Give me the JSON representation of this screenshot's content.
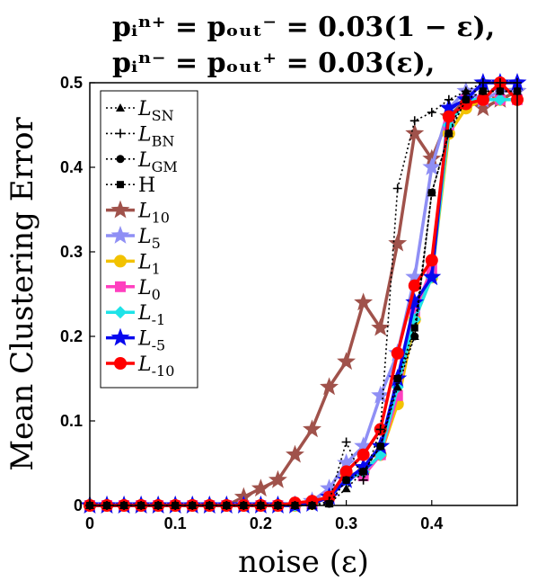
{
  "chart_data": {
    "type": "line",
    "title_lines": [
      "pᵢⁿ⁺ = pₒᵤₜ⁻ = 0.03(1 − ε),",
      "pᵢⁿ⁻ = pₒᵤₜ⁺ = 0.03(ε),"
    ],
    "xlabel": "noise (ε)",
    "ylabel": "Mean Clustering Error",
    "xlim": [
      0,
      0.5
    ],
    "ylim": [
      0,
      0.5
    ],
    "xticks": [
      0,
      0.1,
      0.2,
      0.3,
      0.4
    ],
    "xtick_labels": [
      "0",
      "0.1",
      "0.2",
      "0.3",
      "0.4"
    ],
    "yticks": [
      0,
      0.1,
      0.2,
      0.3,
      0.4,
      0.5
    ],
    "ytick_labels": [
      "0",
      "0.1",
      "0.2",
      "0.3",
      "0.4",
      "0.5"
    ],
    "grid": false,
    "legend_position": "top-left",
    "x": [
      0,
      0.02,
      0.04,
      0.06,
      0.08,
      0.1,
      0.12,
      0.14,
      0.16,
      0.18,
      0.2,
      0.22,
      0.24,
      0.26,
      0.28,
      0.3,
      0.32,
      0.34,
      0.36,
      0.38,
      0.4,
      0.42,
      0.44,
      0.46,
      0.48,
      0.5
    ],
    "series": [
      {
        "name": "L_SN",
        "label_main": "L",
        "label_sub": "SN",
        "color": "#000000",
        "marker": "triangle",
        "dotted": true,
        "values": [
          0,
          0,
          0,
          0,
          0,
          0,
          0,
          0,
          0,
          0,
          0,
          0,
          0,
          0,
          0.002,
          0.02,
          0.04,
          0.07,
          0.14,
          0.2,
          0.37,
          0.44,
          0.49,
          0.49,
          0.49,
          0.49
        ]
      },
      {
        "name": "L_BN",
        "label_main": "L",
        "label_sub": "BN",
        "color": "#000000",
        "marker": "plus",
        "dotted": true,
        "values": [
          0,
          0,
          0,
          0,
          0,
          0,
          0,
          0,
          0,
          0,
          0,
          0,
          0,
          0,
          0.005,
          0.075,
          0.03,
          0.09,
          0.375,
          0.455,
          0.465,
          0.48,
          0.49,
          0.5,
          0.5,
          0.5
        ]
      },
      {
        "name": "L_GM",
        "label_main": "L",
        "label_sub": "GM",
        "color": "#000000",
        "marker": "circle",
        "dotted": true,
        "values": [
          0,
          0,
          0,
          0,
          0,
          0,
          0,
          0,
          0,
          0,
          0,
          0,
          0,
          0,
          0.002,
          0.03,
          0.04,
          0.07,
          0.15,
          0.2,
          0.37,
          0.44,
          0.48,
          0.49,
          0.49,
          0.49
        ]
      },
      {
        "name": "H",
        "label_main": "H",
        "label_sub": "",
        "color": "#000000",
        "marker": "square",
        "dotted": true,
        "values": [
          0,
          0,
          0,
          0,
          0,
          0,
          0,
          0,
          0,
          0,
          0,
          0,
          0,
          0,
          0.002,
          0.03,
          0.04,
          0.07,
          0.15,
          0.21,
          0.37,
          0.44,
          0.48,
          0.49,
          0.49,
          0.49
        ]
      },
      {
        "name": "L_10",
        "label_main": "L",
        "label_sub": "10",
        "color": "#a0524b",
        "marker": "star",
        "dotted": false,
        "values": [
          0,
          0,
          0,
          0,
          0,
          0,
          0,
          0,
          0,
          0.01,
          0.02,
          0.03,
          0.06,
          0.09,
          0.14,
          0.17,
          0.24,
          0.21,
          0.31,
          0.44,
          0.41,
          0.46,
          0.48,
          0.47,
          0.48,
          0.49
        ]
      },
      {
        "name": "L_5",
        "label_main": "L",
        "label_sub": "5",
        "color": "#8f8ff5",
        "marker": "star",
        "dotted": false,
        "values": [
          0,
          0,
          0,
          0,
          0,
          0,
          0,
          0,
          0,
          0,
          0,
          0,
          0,
          0.005,
          0.02,
          0.05,
          0.07,
          0.13,
          0.18,
          0.27,
          0.4,
          0.47,
          0.49,
          0.48,
          0.49,
          0.49
        ]
      },
      {
        "name": "L_1",
        "label_main": "L",
        "label_sub": "1",
        "color": "#f2c200",
        "marker": "circle",
        "dotted": false,
        "values": [
          0,
          0,
          0,
          0,
          0,
          0,
          0,
          0,
          0,
          0,
          0,
          0,
          0,
          0.002,
          0.01,
          0.035,
          0.04,
          0.06,
          0.12,
          0.22,
          0.27,
          0.44,
          0.47,
          0.48,
          0.48,
          0.48
        ]
      },
      {
        "name": "L_0",
        "label_main": "L",
        "label_sub": "0",
        "color": "#ff3fbf",
        "marker": "square",
        "dotted": false,
        "values": [
          0,
          0,
          0,
          0,
          0,
          0,
          0,
          0,
          0,
          0,
          0,
          0,
          0,
          0.002,
          0.01,
          0.035,
          0.035,
          0.06,
          0.13,
          0.23,
          0.28,
          0.45,
          0.48,
          0.48,
          0.48,
          0.48
        ]
      },
      {
        "name": "L_-1",
        "label_main": "L",
        "label_sub": "-1",
        "color": "#1ee3e8",
        "marker": "diamond",
        "dotted": false,
        "values": [
          0,
          0,
          0,
          0,
          0,
          0,
          0,
          0,
          0,
          0,
          0,
          0,
          0,
          0.002,
          0.01,
          0.03,
          0.04,
          0.06,
          0.14,
          0.22,
          0.27,
          0.45,
          0.48,
          0.48,
          0.48,
          0.48
        ]
      },
      {
        "name": "L_-5",
        "label_main": "L",
        "label_sub": "-5",
        "color": "#0808ee",
        "marker": "star",
        "dotted": false,
        "values": [
          0,
          0,
          0,
          0,
          0,
          0,
          0,
          0,
          0,
          0,
          0,
          0,
          0,
          0.002,
          0.01,
          0.03,
          0.045,
          0.07,
          0.15,
          0.24,
          0.27,
          0.47,
          0.48,
          0.5,
          0.5,
          0.5
        ]
      },
      {
        "name": "L_-10",
        "label_main": "L",
        "label_sub": "-10",
        "color": "#ff0000",
        "marker": "circle",
        "dotted": false,
        "values": [
          0,
          0,
          0,
          0,
          0,
          0,
          0,
          0,
          0,
          0,
          0,
          0,
          0.003,
          0.005,
          0.01,
          0.04,
          0.06,
          0.09,
          0.18,
          0.26,
          0.29,
          0.46,
          0.475,
          0.48,
          0.5,
          0.48
        ]
      }
    ]
  }
}
